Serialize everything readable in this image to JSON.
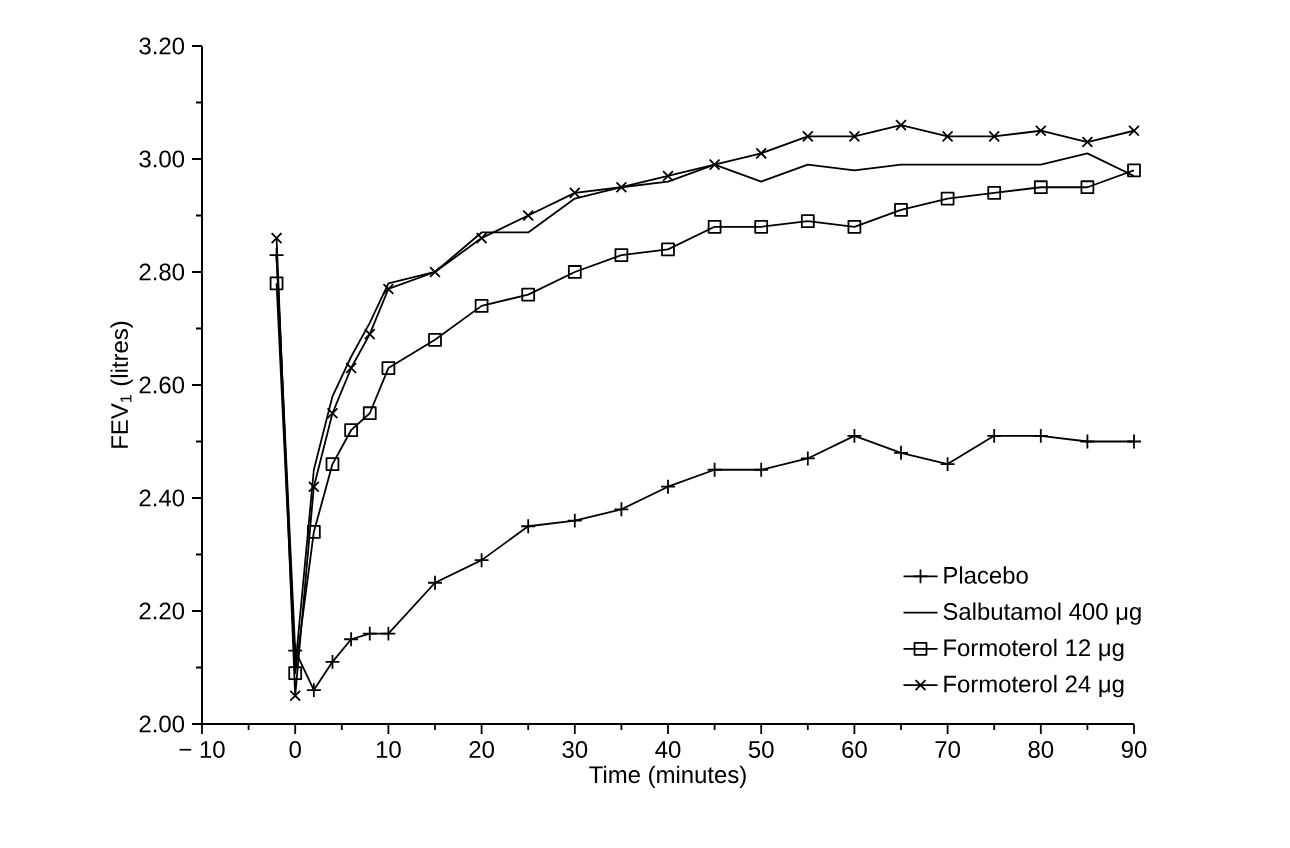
{
  "chart_data": {
    "type": "line",
    "xlabel": "Time (minutes)",
    "ylabel": "FEV$_{1}$ (litres)",
    "x": [
      -2,
      0,
      2,
      4,
      6,
      8,
      10,
      15,
      20,
      25,
      30,
      35,
      40,
      45,
      50,
      55,
      60,
      65,
      70,
      75,
      80,
      85,
      90
    ],
    "series": [
      {
        "name": "Placebo",
        "color": "#000000",
        "marker": "cross",
        "values": [
          2.83,
          2.13,
          2.06,
          2.11,
          2.15,
          2.16,
          2.16,
          2.25,
          2.29,
          2.35,
          2.36,
          2.38,
          2.42,
          2.45,
          2.45,
          2.47,
          2.51,
          2.48,
          2.46,
          2.51,
          2.51,
          2.5,
          2.5
        ]
      },
      {
        "name": "Salbutamol 400 μg",
        "color": "#000000",
        "marker": "none",
        "values": [
          2.83,
          2.1,
          2.45,
          2.58,
          2.65,
          2.71,
          2.78,
          2.8,
          2.87,
          2.87,
          2.93,
          2.95,
          2.96,
          2.99,
          2.96,
          2.99,
          2.98,
          2.99,
          2.99,
          2.99,
          2.99,
          3.01,
          2.97
        ]
      },
      {
        "name": "Formoterol 12 μg",
        "color": "#000000",
        "marker": "square",
        "values": [
          2.78,
          2.09,
          2.34,
          2.46,
          2.52,
          2.55,
          2.63,
          2.68,
          2.74,
          2.76,
          2.8,
          2.83,
          2.84,
          2.88,
          2.88,
          2.89,
          2.88,
          2.91,
          2.93,
          2.94,
          2.95,
          2.95,
          2.98
        ]
      },
      {
        "name": "Formoterol 24 μg",
        "color": "#000000",
        "marker": "cross",
        "values": [
          2.86,
          2.05,
          2.42,
          2.55,
          2.63,
          2.69,
          2.77,
          2.8,
          2.86,
          2.9,
          2.94,
          2.95,
          2.97,
          2.99,
          3.01,
          3.04,
          3.04,
          3.06,
          3.04,
          3.04,
          3.05,
          3.03,
          3.05
        ]
      }
    ],
    "xlim": [
      -10,
      90
    ],
    "ylim": [
      2.0,
      3.2
    ],
    "xticks": [
      {
        "value": -10,
        "label": "− 10"
      },
      0,
      10,
      20,
      30,
      40,
      50,
      60,
      70,
      80,
      90
    ],
    "yticks": [
      {
        "value": 2.0,
        "label": "2.00"
      },
      {
        "value": 2.2,
        "label": "2.20"
      },
      {
        "value": 2.4,
        "label": "2.40"
      },
      {
        "value": 2.6,
        "label": "2.60"
      },
      {
        "value": 2.8,
        "label": "2.80"
      },
      {
        "value": 3.0,
        "label": "3.00"
      },
      {
        "value": 3.2,
        "label": "3.20"
      }
    ],
    "grid": false,
    "legend": "bottom right",
    "line_style": "solid"
  }
}
